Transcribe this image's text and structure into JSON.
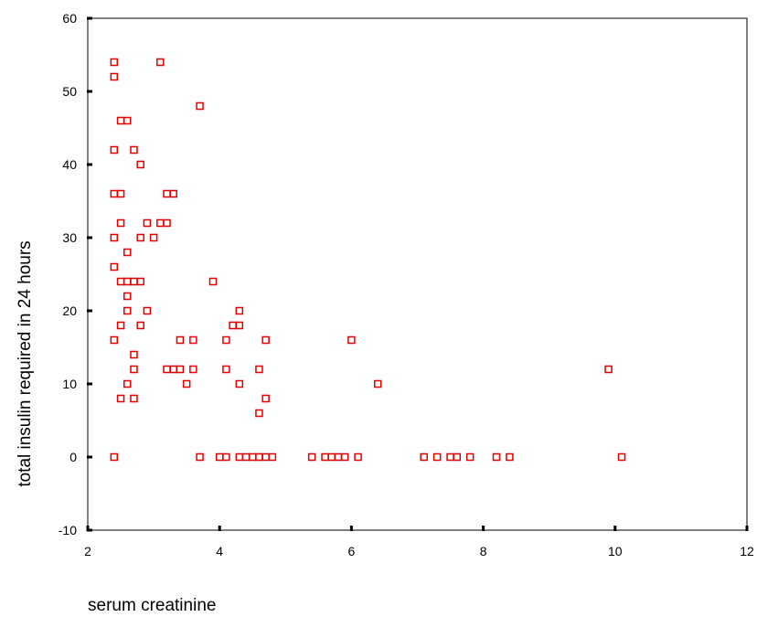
{
  "chart_data": {
    "type": "scatter",
    "title": "",
    "xlabel": "serum creatinine",
    "ylabel": "total insulin required in 24 hours",
    "xlim": [
      2,
      12
    ],
    "ylim": [
      -10,
      60
    ],
    "xticks": [
      "2",
      "4",
      "6",
      "8",
      "10",
      "12"
    ],
    "yticks": [
      "-10",
      "0",
      "10",
      "20",
      "30",
      "40",
      "50",
      "60"
    ],
    "grid": false,
    "legend": "none",
    "marker": "open-square",
    "marker_color": "#e00000",
    "series": [
      {
        "points": [
          [
            2.4,
            54
          ],
          [
            2.4,
            52
          ],
          [
            2.5,
            46
          ],
          [
            2.6,
            46
          ],
          [
            2.4,
            42
          ],
          [
            2.7,
            42
          ],
          [
            2.8,
            40
          ],
          [
            2.4,
            36
          ],
          [
            2.5,
            36
          ],
          [
            2.5,
            32
          ],
          [
            2.4,
            30
          ],
          [
            2.4,
            26
          ],
          [
            2.6,
            28
          ],
          [
            2.8,
            30
          ],
          [
            2.9,
            32
          ],
          [
            3.0,
            30
          ],
          [
            3.1,
            32
          ],
          [
            3.2,
            32
          ],
          [
            3.1,
            54
          ],
          [
            3.2,
            36
          ],
          [
            3.3,
            36
          ],
          [
            3.7,
            48
          ],
          [
            2.5,
            24
          ],
          [
            2.6,
            24
          ],
          [
            2.7,
            24
          ],
          [
            2.8,
            24
          ],
          [
            2.6,
            22
          ],
          [
            2.6,
            20
          ],
          [
            2.9,
            20
          ],
          [
            2.5,
            18
          ],
          [
            2.8,
            18
          ],
          [
            2.4,
            16
          ],
          [
            2.7,
            14
          ],
          [
            2.7,
            12
          ],
          [
            2.6,
            10
          ],
          [
            2.5,
            8
          ],
          [
            2.7,
            8
          ],
          [
            2.4,
            0
          ],
          [
            3.2,
            12
          ],
          [
            3.3,
            12
          ],
          [
            3.4,
            12
          ],
          [
            3.4,
            16
          ],
          [
            3.5,
            10
          ],
          [
            3.6,
            12
          ],
          [
            3.6,
            16
          ],
          [
            3.7,
            0
          ],
          [
            3.9,
            24
          ],
          [
            4.0,
            0
          ],
          [
            4.1,
            0
          ],
          [
            4.1,
            16
          ],
          [
            4.1,
            12
          ],
          [
            4.2,
            18
          ],
          [
            4.3,
            18
          ],
          [
            4.3,
            20
          ],
          [
            4.3,
            10
          ],
          [
            4.3,
            0
          ],
          [
            4.4,
            0
          ],
          [
            4.5,
            0
          ],
          [
            4.6,
            0
          ],
          [
            4.6,
            12
          ],
          [
            4.6,
            6
          ],
          [
            4.7,
            16
          ],
          [
            4.7,
            8
          ],
          [
            4.7,
            0
          ],
          [
            4.8,
            0
          ],
          [
            5.4,
            0
          ],
          [
            5.6,
            0
          ],
          [
            5.7,
            0
          ],
          [
            5.8,
            0
          ],
          [
            5.9,
            0
          ],
          [
            6.0,
            16
          ],
          [
            6.1,
            0
          ],
          [
            6.4,
            10
          ],
          [
            7.1,
            0
          ],
          [
            7.3,
            0
          ],
          [
            7.5,
            0
          ],
          [
            7.6,
            0
          ],
          [
            7.8,
            0
          ],
          [
            8.2,
            0
          ],
          [
            8.4,
            0
          ],
          [
            9.9,
            12
          ],
          [
            10.1,
            0
          ]
        ]
      }
    ]
  }
}
